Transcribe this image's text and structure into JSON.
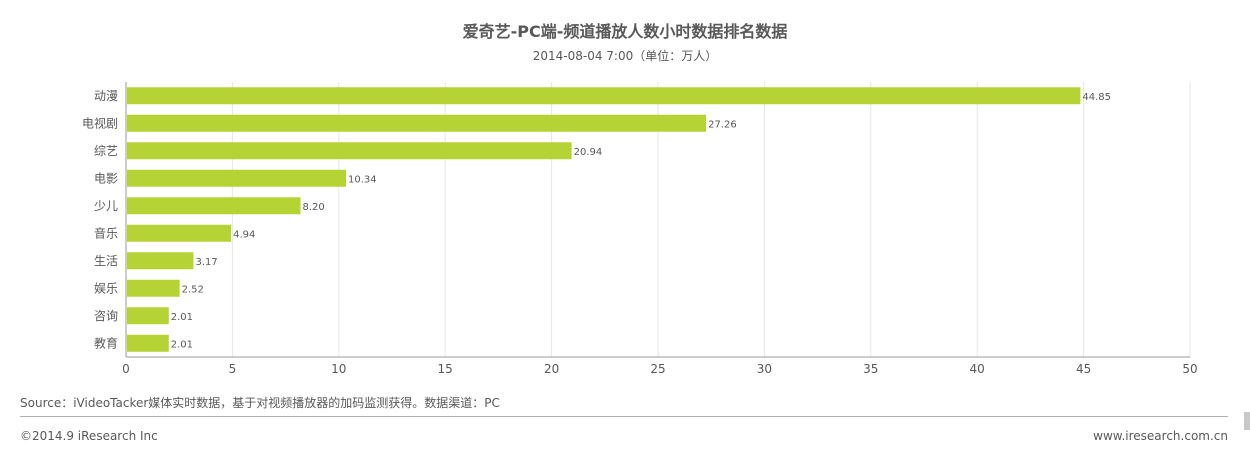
{
  "title": "爱奇艺-PC端-频道播放人数小时数据排名数据",
  "subtitle": "2014-08-04 7:00（单位：万人）",
  "source": "Source：iVideoTacker媒体实时数据，基于对视频播放器的加码监测获得。数据渠道：PC",
  "copyright": "©2014.9 iResearch Inc",
  "website": "www.iresearch.com.cn",
  "colors": {
    "bar": "#b5d334",
    "grid": "#e6e6e6",
    "axis": "#999999",
    "text": "#595959"
  },
  "chart_data": {
    "type": "bar",
    "orientation": "horizontal",
    "categories": [
      "动漫",
      "电视剧",
      "综艺",
      "电影",
      "少儿",
      "音乐",
      "生活",
      "娱乐",
      "咨询",
      "教育"
    ],
    "values": [
      44.85,
      27.26,
      20.94,
      10.34,
      8.2,
      4.94,
      3.17,
      2.52,
      2.01,
      2.01
    ],
    "value_labels": [
      "44.85",
      "27.26",
      "20.94",
      "10.34",
      "8.20",
      "4.94",
      "3.17",
      "2.52",
      "2.01",
      "2.01"
    ],
    "xlim": [
      0,
      50
    ],
    "xticks": [
      "0",
      "5",
      "10",
      "15",
      "20",
      "25",
      "30",
      "35",
      "40",
      "45",
      "50"
    ],
    "grid": true,
    "legend": "none"
  }
}
